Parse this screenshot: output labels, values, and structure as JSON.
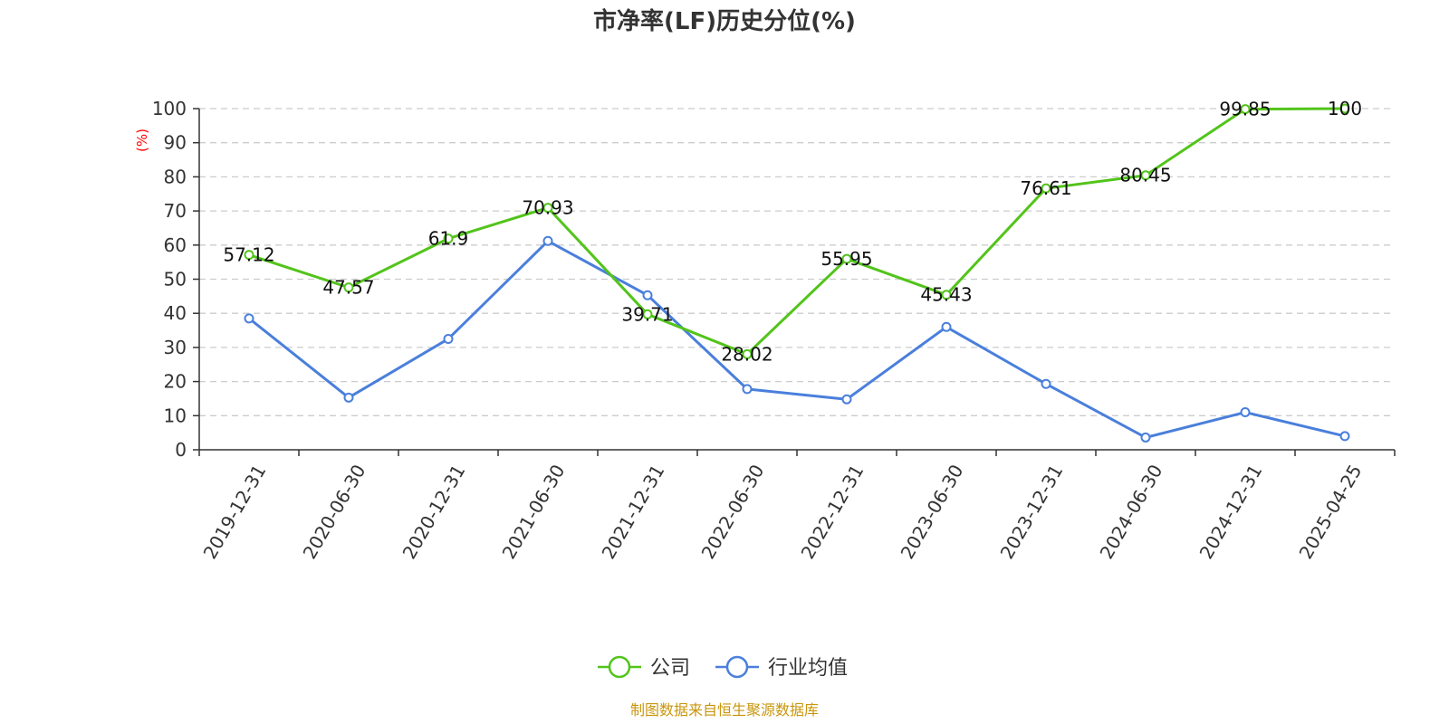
{
  "chart_data": {
    "type": "line",
    "title": "市净率(LF)历史分位(%)",
    "ylabel": "(%)",
    "xlabel": "",
    "categories": [
      "2019-12-31",
      "2020-06-30",
      "2020-12-31",
      "2021-06-30",
      "2021-12-31",
      "2022-06-30",
      "2022-12-31",
      "2023-06-30",
      "2023-12-31",
      "2024-06-30",
      "2024-12-31",
      "2025-04-25"
    ],
    "ylim": [
      0,
      100
    ],
    "yticks": [
      0,
      10,
      20,
      30,
      40,
      50,
      60,
      70,
      80,
      90,
      100
    ],
    "grid": true,
    "legend_position": "bottom-center",
    "series": [
      {
        "name": "公司",
        "color": "#52c41a",
        "values": [
          57.12,
          47.57,
          61.9,
          70.93,
          39.71,
          28.02,
          55.95,
          45.43,
          76.61,
          80.45,
          99.85,
          100
        ],
        "labels": [
          "57.12",
          "47.57",
          "61.9",
          "70.93",
          "39.71",
          "28.02",
          "55.95",
          "45.43",
          "76.61",
          "80.45",
          "99.85",
          "100"
        ]
      },
      {
        "name": "行业均值",
        "color": "#4a7fdc",
        "values": [
          38.5,
          15.3,
          32.5,
          61.2,
          45.3,
          17.8,
          14.8,
          36.0,
          19.3,
          3.6,
          11.0,
          4.0
        ]
      }
    ]
  },
  "source_text": "制图数据来自恒生聚源数据库"
}
